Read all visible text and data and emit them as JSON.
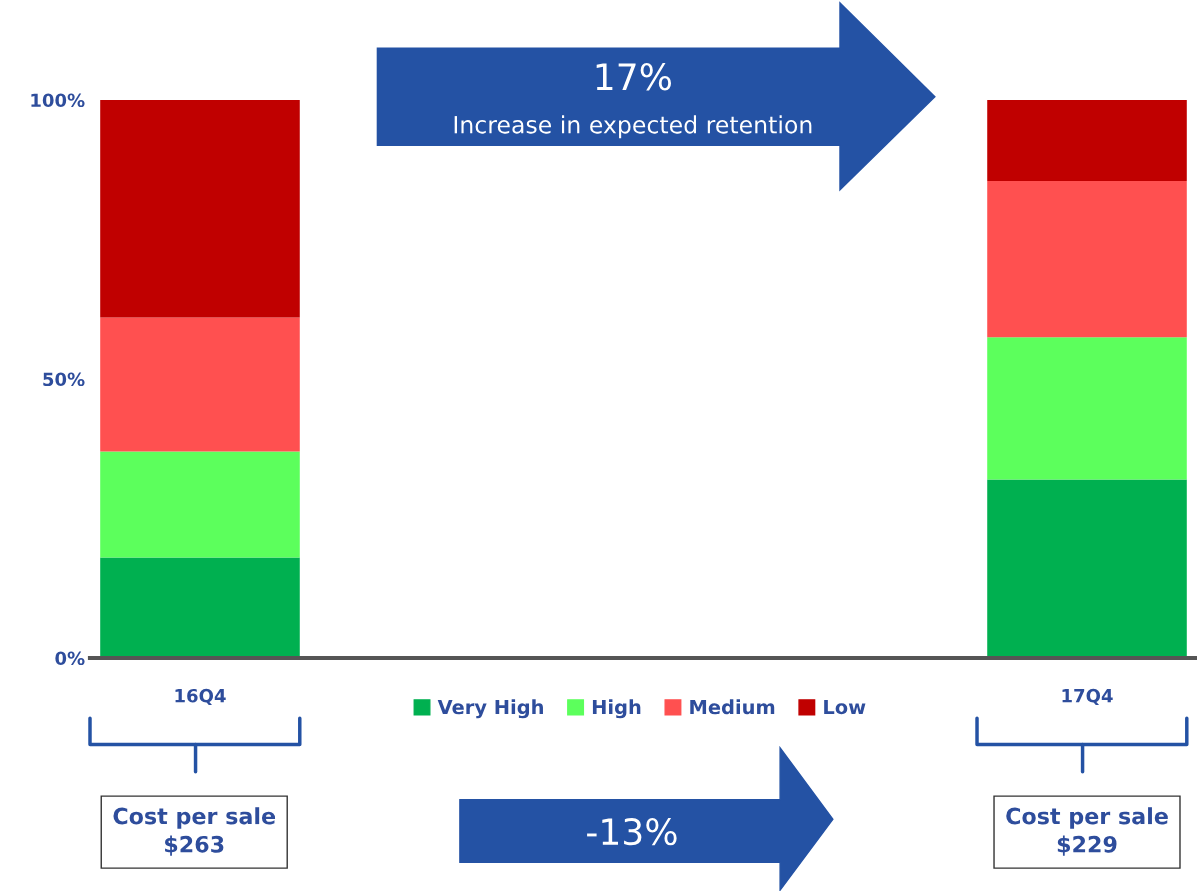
{
  "chart_data": {
    "type": "bar",
    "stacked": true,
    "categories": [
      "16Q4",
      null,
      "17Q4"
    ],
    "series": [
      {
        "name": "Very High",
        "color": "#00b050",
        "values": [
          18,
          null,
          32
        ]
      },
      {
        "name": "High",
        "color": "#5cff5c",
        "values": [
          19,
          null,
          25.5
        ]
      },
      {
        "name": "Medium",
        "color": "#ff5050",
        "values": [
          24,
          null,
          28
        ]
      },
      {
        "name": "Low",
        "color": "#c00000",
        "values": [
          39,
          null,
          14.5
        ]
      }
    ],
    "ylim": [
      0,
      100
    ],
    "yticks": [
      {
        "value": 0,
        "label": "0%"
      },
      {
        "value": 50,
        "label": "50%"
      },
      {
        "value": 100,
        "label": "100%"
      }
    ],
    "grid": false,
    "legend": "bottom",
    "annotations": [
      "17%",
      "Increase in expected retention",
      "-13%",
      "Cost per sale\n$263",
      "Cost per sale\n$229"
    ]
  }
}
